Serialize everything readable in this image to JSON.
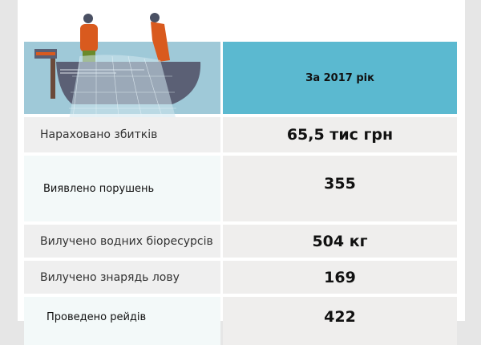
{
  "header": {
    "period_label": "За 2017 рік"
  },
  "colors": {
    "header_accent": "#5bb9d0",
    "image_bg": "#9fc9d8",
    "row_bg": "#efefef"
  },
  "rows": [
    {
      "label": "Нараховано збитків",
      "value": "65,5 тис грн"
    },
    {
      "label": "Виявлено порушень",
      "value": "355"
    },
    {
      "label": "Вилучено водних біоресурсів",
      "value": "504 кг"
    },
    {
      "label": "Вилучено знарядь лову",
      "value": "169"
    },
    {
      "label": "Проведено рейдів",
      "value": "422"
    }
  ]
}
